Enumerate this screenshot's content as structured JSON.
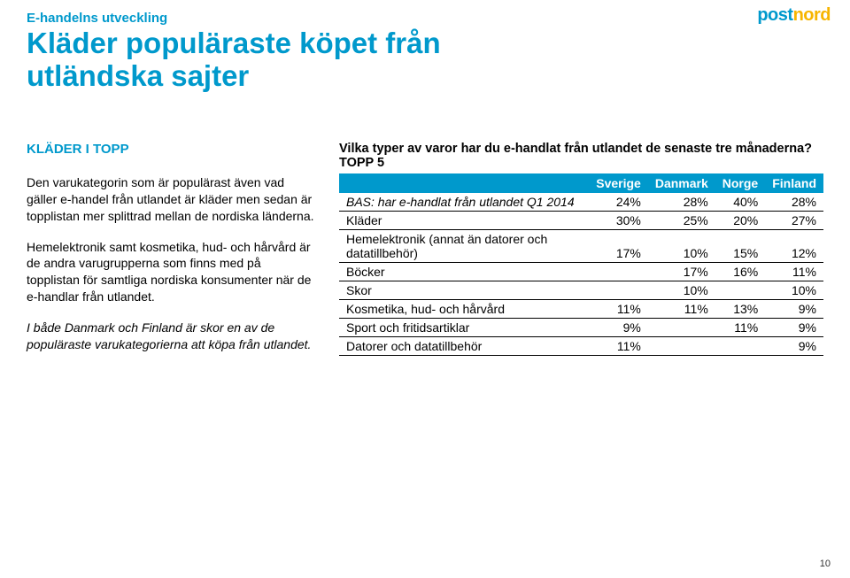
{
  "colors": {
    "accent": "#0099cc",
    "logoGold": "#f7b500",
    "headerBg": "#0099cc",
    "headerText": "#ffffff",
    "bodyText": "#000000",
    "background": "#ffffff",
    "rowBorder": "#000000"
  },
  "logo": {
    "first": "post",
    "second": "nord"
  },
  "eyebrow": "E-handelns utveckling",
  "title_line1": "Kläder populäraste köpet från",
  "title_line2": "utländska sajter",
  "subhead": "KLÄDER I TOPP",
  "para1": "Den varukategorin som är populärast även vad gäller e-handel från utlandet är kläder men sedan är topplistan mer splittrad mellan de nordiska länderna.",
  "para2": "Hemelektronik samt kosmetika, hud- och hårvård är de andra varugrupperna som finns med på topplistan för samtliga nordiska konsumenter när de e-handlar från utlandet.",
  "para3": "I både Danmark och Finland är skor en av de populäraste varukategorierna att köpa från utlandet.",
  "tableTitle": "Vilka typer av varor har du e-handlat från utlandet de senaste tre månaderna? TOPP 5",
  "table": {
    "headers": [
      "",
      "Sverige",
      "Danmark",
      "Norge",
      "Finland"
    ],
    "rows": [
      {
        "label": "BAS: har e-handlat från utlandet Q1 2014",
        "italic": true,
        "cells": [
          "24%",
          "28%",
          "40%",
          "28%"
        ]
      },
      {
        "label": "Kläder",
        "italic": false,
        "cells": [
          "30%",
          "25%",
          "20%",
          "27%"
        ]
      },
      {
        "label": "Hemelektronik (annat än datorer och datatillbehör)",
        "italic": false,
        "cells": [
          "17%",
          "10%",
          "15%",
          "12%"
        ]
      },
      {
        "label": "Böcker",
        "italic": false,
        "cells": [
          "",
          "17%",
          "16%",
          "11%"
        ]
      },
      {
        "label": "Skor",
        "italic": false,
        "cells": [
          "",
          "10%",
          "",
          "10%"
        ]
      },
      {
        "label": "Kosmetika, hud- och hårvård",
        "italic": false,
        "cells": [
          "11%",
          "11%",
          "13%",
          "9%"
        ]
      },
      {
        "label": "Sport och fritidsartiklar",
        "italic": false,
        "cells": [
          "9%",
          "",
          "11%",
          "9%"
        ]
      },
      {
        "label": "Datorer och datatillbehör",
        "italic": false,
        "cells": [
          "11%",
          "",
          "",
          "9%"
        ]
      }
    ]
  },
  "pageNumber": "10"
}
